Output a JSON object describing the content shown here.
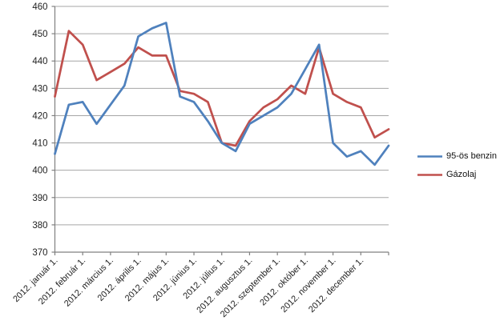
{
  "chart_data": {
    "type": "line",
    "title": "",
    "xlabel": "",
    "ylabel": "",
    "ylim": [
      370,
      460
    ],
    "ytick_step": 10,
    "ytick_labels": [
      "370",
      "380",
      "390",
      "400",
      "410",
      "420",
      "430",
      "440",
      "450",
      "460"
    ],
    "grid": true,
    "legend_position": "right",
    "x_tick_labels": [
      "2012. január 1.",
      "2012. február 1.",
      "2012. március 1.",
      "2012. április 1.",
      "2012. május 1.",
      "2012. június 1.",
      "2012. július 1.",
      "2012. augusztus 1.",
      "2012. szeptember 1.",
      "2012. október 1.",
      "2012. november 1.",
      "2012. december 1."
    ],
    "points_per_label_interval": 2,
    "series": [
      {
        "name": "95-ös benzin",
        "color": "#4F81BD",
        "values": [
          406,
          424,
          425,
          417,
          424,
          431,
          449,
          452,
          454,
          427,
          425,
          418,
          410,
          407,
          417,
          420,
          423,
          428,
          437,
          446,
          410,
          405,
          407,
          402,
          409
        ]
      },
      {
        "name": "Gázolaj",
        "color": "#C0504D",
        "values": [
          427,
          451,
          446,
          433,
          436,
          439,
          445,
          442,
          442,
          429,
          428,
          425,
          410,
          409,
          418,
          423,
          426,
          431,
          428,
          445,
          428,
          425,
          423,
          412,
          415
        ]
      }
    ],
    "axis_color": "#808080",
    "gridline_color": "#A6A6A6"
  },
  "legend": {
    "items": [
      {
        "label": "95-ös benzin"
      },
      {
        "label": "Gázolaj"
      }
    ]
  }
}
